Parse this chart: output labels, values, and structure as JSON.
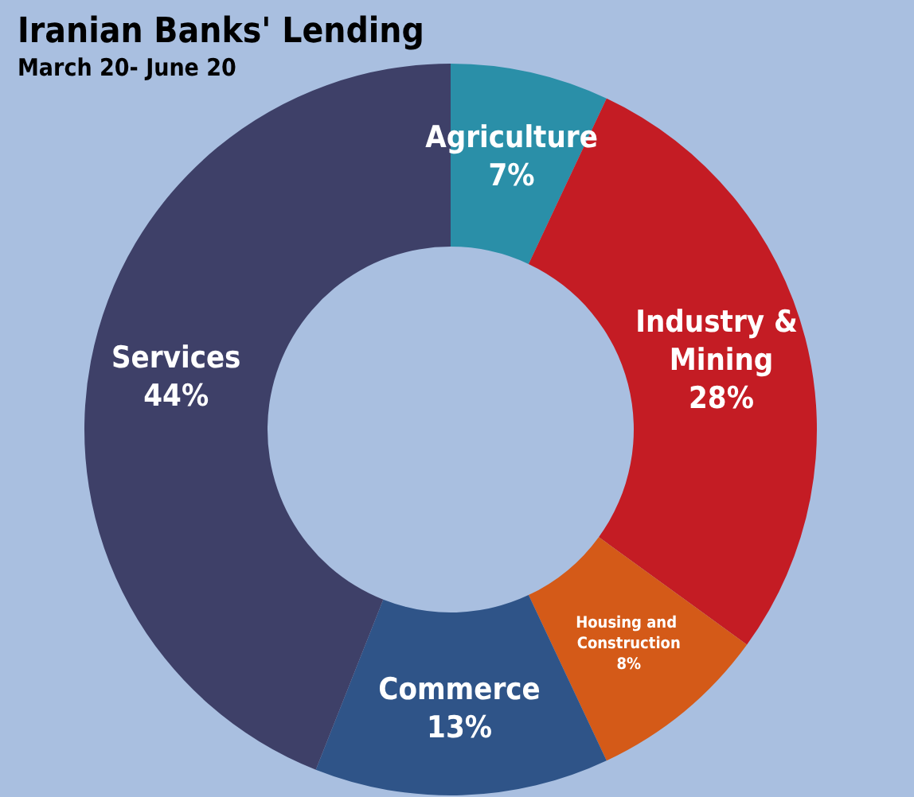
{
  "chart_data": {
    "type": "donut",
    "title": "Iranian Banks' Lending",
    "subtitle": "March 20- June 20",
    "categories": [
      "Agriculture",
      "Industry & Mining",
      "Housing and Construction",
      "Commerce",
      "Services"
    ],
    "values": [
      7,
      28,
      8,
      13,
      44
    ],
    "value_labels": [
      "7%",
      "28%",
      "8%",
      "13%",
      "44%"
    ],
    "colors": [
      "#2a8fa8",
      "#c41c24",
      "#d45a18",
      "#2f5488",
      "#3e4068"
    ],
    "legend": false
  }
}
